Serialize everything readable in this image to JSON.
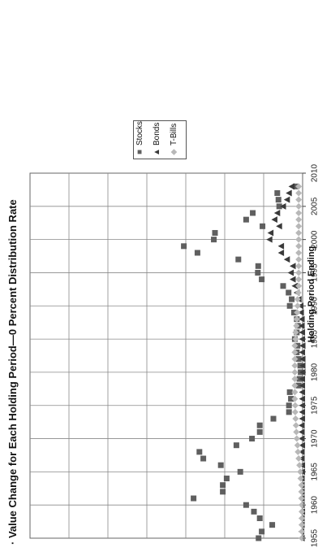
{
  "page": {
    "title": "· Value Change for Each Holding Period—0 Percent Distribution Rate"
  },
  "legend": [
    {
      "label": "Stocks",
      "symbol": "■",
      "color": "#5f5f5f"
    },
    {
      "label": "Bonds",
      "symbol": "▲",
      "color": "#3a3a3a"
    },
    {
      "label": "T-Bills",
      "symbol": "◆",
      "color": "#b8b8b8"
    }
  ],
  "chart_data": {
    "type": "scatter",
    "title": "· Value Change for Each Holding Period—0 Percent Distribution Rate",
    "xlabel": "Holding Period Ending",
    "ylabel": "",
    "xlim": [
      1955,
      2010
    ],
    "ylim": [
      0,
      7
    ],
    "x_ticks": [
      1955,
      1960,
      1965,
      1970,
      1975,
      1980,
      1985,
      1990,
      1995,
      2000,
      2005,
      2010
    ],
    "grid": true,
    "legend_position": "top-right",
    "series": [
      {
        "name": "Stocks",
        "color": "#5f5f5f",
        "marker": "square",
        "points": [
          [
            1955,
            1.13
          ],
          [
            1956,
            1.05
          ],
          [
            1957,
            0.78
          ],
          [
            1958,
            1.1
          ],
          [
            1959,
            1.25
          ],
          [
            1960,
            1.45
          ],
          [
            1961,
            2.8
          ],
          [
            1962,
            2.05
          ],
          [
            1963,
            2.05
          ],
          [
            1964,
            1.95
          ],
          [
            1965,
            1.6
          ],
          [
            1966,
            2.1
          ],
          [
            1967,
            2.55
          ],
          [
            1968,
            2.65
          ],
          [
            1969,
            1.7
          ],
          [
            1970,
            1.3
          ],
          [
            1971,
            1.1
          ],
          [
            1972,
            1.1
          ],
          [
            1973,
            0.75
          ],
          [
            1974,
            0.35
          ],
          [
            1975,
            0.35
          ],
          [
            1976,
            0.3
          ],
          [
            1977,
            0.33
          ],
          [
            1978,
            0.1
          ],
          [
            1979,
            0.08
          ],
          [
            1980,
            0.05
          ],
          [
            1981,
            0.06
          ],
          [
            1982,
            0.1
          ],
          [
            1983,
            0.15
          ],
          [
            1984,
            0.13
          ],
          [
            1985,
            0.2
          ],
          [
            1986,
            0.15
          ],
          [
            1987,
            0.12
          ],
          [
            1988,
            0.15
          ],
          [
            1989,
            0.22
          ],
          [
            1990,
            0.33
          ],
          [
            1991,
            0.28
          ],
          [
            1992,
            0.36
          ],
          [
            1993,
            0.5
          ],
          [
            1994,
            1.05
          ],
          [
            1995,
            1.15
          ],
          [
            1996,
            1.14
          ],
          [
            1997,
            1.65
          ],
          [
            1998,
            2.7
          ],
          [
            1999,
            3.05
          ],
          [
            2000,
            2.28
          ],
          [
            2001,
            2.25
          ],
          [
            2002,
            1.03
          ],
          [
            2003,
            1.45
          ],
          [
            2004,
            1.28
          ],
          [
            2005,
            0.6
          ],
          [
            2006,
            0.62
          ],
          [
            2007,
            0.65
          ],
          [
            2008,
            0.18
          ]
        ]
      },
      {
        "name": "Bonds",
        "color": "#3a3a3a",
        "marker": "triangle",
        "points": [
          [
            1955,
            0.02
          ],
          [
            1956,
            0.03
          ],
          [
            1957,
            0.02
          ],
          [
            1958,
            0.02
          ],
          [
            1959,
            0.01
          ],
          [
            1960,
            0.02
          ],
          [
            1961,
            0.02
          ],
          [
            1962,
            0.02
          ],
          [
            1963,
            0.02
          ],
          [
            1964,
            0.02
          ],
          [
            1965,
            0.01
          ],
          [
            1966,
            0.01
          ],
          [
            1967,
            0.02
          ],
          [
            1968,
            0.02
          ],
          [
            1969,
            0.01
          ],
          [
            1970,
            0.02
          ],
          [
            1971,
            0.02
          ],
          [
            1972,
            0.02
          ],
          [
            1973,
            0.01
          ],
          [
            1974,
            0.01
          ],
          [
            1975,
            0.01
          ],
          [
            1976,
            0.01
          ],
          [
            1977,
            0.01
          ],
          [
            1978,
            0.01
          ],
          [
            1979,
            0.01
          ],
          [
            1980,
            0.0
          ],
          [
            1981,
            0.0
          ],
          [
            1982,
            0.0
          ],
          [
            1983,
            0.01
          ],
          [
            1984,
            0.0
          ],
          [
            1985,
            0.01
          ],
          [
            1986,
            0.01
          ],
          [
            1987,
            0.02
          ],
          [
            1988,
            0.02
          ],
          [
            1989,
            0.04
          ],
          [
            1990,
            0.05
          ],
          [
            1991,
            0.1
          ],
          [
            1992,
            0.15
          ],
          [
            1993,
            0.2
          ],
          [
            1994,
            0.25
          ],
          [
            1995,
            0.3
          ],
          [
            1996,
            0.25
          ],
          [
            1997,
            0.4
          ],
          [
            1998,
            0.55
          ],
          [
            1999,
            0.55
          ],
          [
            2000,
            0.85
          ],
          [
            2001,
            0.82
          ],
          [
            2002,
            0.6
          ],
          [
            2003,
            0.72
          ],
          [
            2004,
            0.65
          ],
          [
            2005,
            0.5
          ],
          [
            2006,
            0.4
          ],
          [
            2007,
            0.35
          ],
          [
            2008,
            0.28
          ]
        ]
      },
      {
        "name": "T-Bills",
        "color": "#b8b8b8",
        "marker": "diamond",
        "points": [
          [
            1955,
            0.02
          ],
          [
            1956,
            0.02
          ],
          [
            1957,
            0.02
          ],
          [
            1958,
            0.02
          ],
          [
            1959,
            0.02
          ],
          [
            1960,
            0.02
          ],
          [
            1961,
            0.03
          ],
          [
            1962,
            0.03
          ],
          [
            1963,
            0.03
          ],
          [
            1964,
            0.05
          ],
          [
            1965,
            0.06
          ],
          [
            1966,
            0.08
          ],
          [
            1967,
            0.1
          ],
          [
            1968,
            0.12
          ],
          [
            1969,
            0.13
          ],
          [
            1970,
            0.15
          ],
          [
            1971,
            0.16
          ],
          [
            1972,
            0.17
          ],
          [
            1973,
            0.18
          ],
          [
            1974,
            0.19
          ],
          [
            1975,
            0.19
          ],
          [
            1976,
            0.2
          ],
          [
            1977,
            0.2
          ],
          [
            1978,
            0.2
          ],
          [
            1979,
            0.2
          ],
          [
            1980,
            0.2
          ],
          [
            1981,
            0.2
          ],
          [
            1982,
            0.2
          ],
          [
            1983,
            0.2
          ],
          [
            1984,
            0.2
          ],
          [
            1985,
            0.18
          ],
          [
            1986,
            0.18
          ],
          [
            1987,
            0.16
          ],
          [
            1988,
            0.15
          ],
          [
            1989,
            0.14
          ],
          [
            1990,
            0.13
          ],
          [
            1991,
            0.13
          ],
          [
            1992,
            0.11
          ],
          [
            1993,
            0.1
          ],
          [
            1994,
            0.1
          ],
          [
            1995,
            0.1
          ],
          [
            1996,
            0.1
          ],
          [
            1997,
            0.1
          ],
          [
            1998,
            0.1
          ],
          [
            1999,
            0.1
          ],
          [
            2000,
            0.1
          ],
          [
            2001,
            0.1
          ],
          [
            2002,
            0.1
          ],
          [
            2003,
            0.1
          ],
          [
            2004,
            0.1
          ],
          [
            2005,
            0.1
          ],
          [
            2006,
            0.1
          ],
          [
            2007,
            0.1
          ],
          [
            2008,
            0.1
          ]
        ]
      }
    ]
  }
}
